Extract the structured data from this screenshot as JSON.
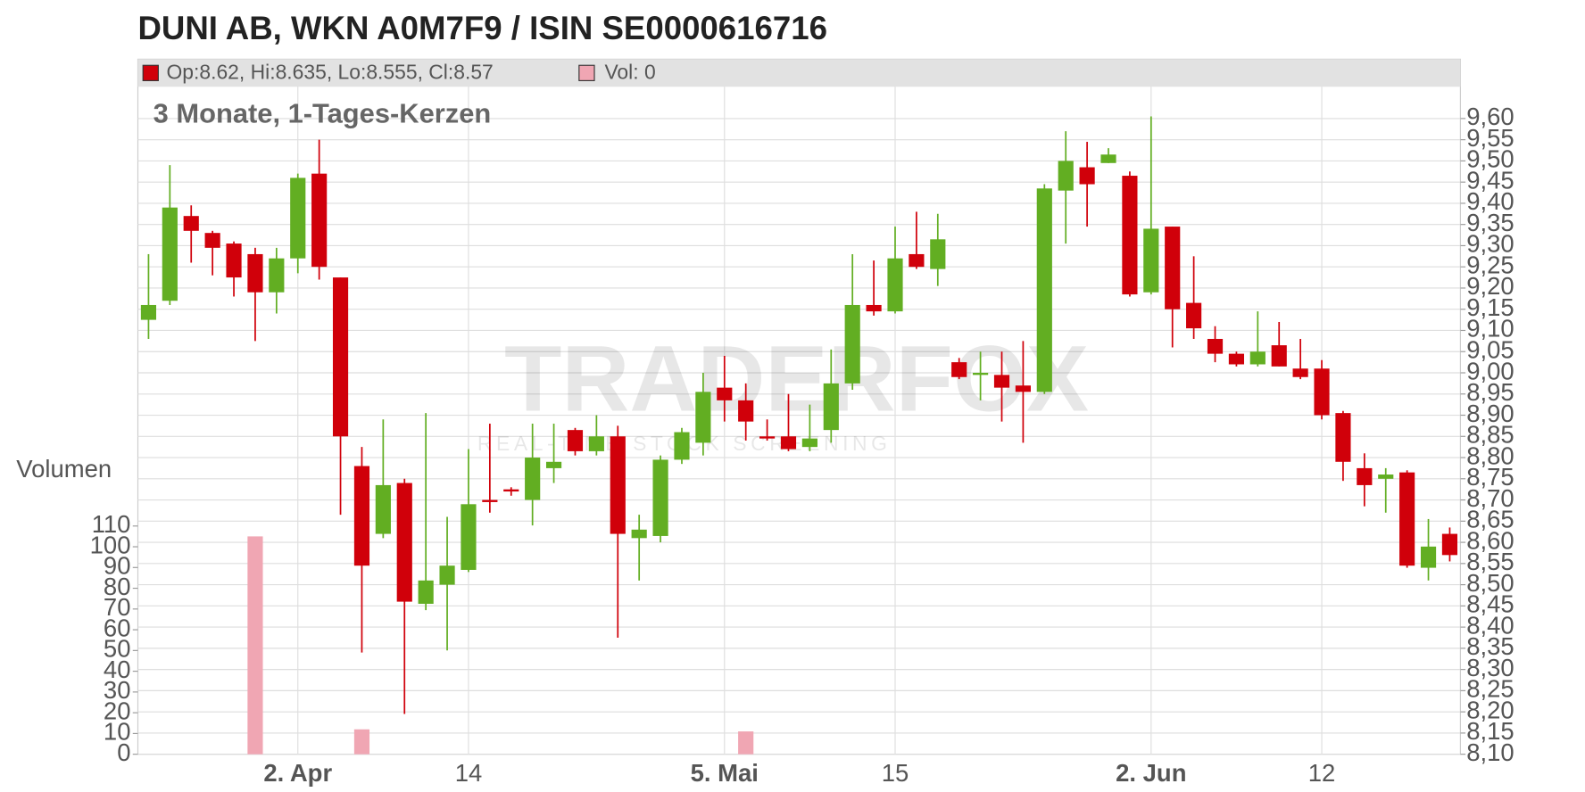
{
  "chart_data": {
    "type": "candlestick",
    "title": "DUNI AB, WKN A0M7F9 / ISIN SE0000616716",
    "subtitle": "3 Monate, 1-Tages-Kerzen",
    "legend": [
      "Op:8.62, Hi:8.635, Lo:8.555, Cl:8.57",
      "Vol: 0"
    ],
    "y2_label": "Volumen",
    "watermark": [
      "TRADERFOX",
      "REAL-TIME STOCK SCREENING"
    ],
    "up_color": "#62ae22",
    "down_color": "#d0000a",
    "volume_color": "#f0a6b3",
    "grid": true,
    "categories": [
      null,
      null,
      null,
      null,
      null,
      null,
      null,
      "2. Apr",
      null,
      null,
      null,
      null,
      null,
      null,
      null,
      "14",
      null,
      null,
      null,
      null,
      null,
      null,
      null,
      null,
      null,
      null,
      null,
      "5. Mai",
      null,
      null,
      null,
      null,
      null,
      null,
      null,
      "15",
      null,
      null,
      null,
      null,
      null,
      null,
      null,
      null,
      null,
      null,
      null,
      "2. Jun",
      null,
      null,
      null,
      null,
      null,
      null,
      null,
      "12",
      null,
      null,
      null,
      null,
      null,
      null
    ],
    "open": [
      9.125,
      9.17,
      9.37,
      9.33,
      9.305,
      9.28,
      9.19,
      9.27,
      9.47,
      9.225,
      8.78,
      8.62,
      8.74,
      8.455,
      8.5,
      8.535,
      8.7,
      8.725,
      8.7,
      8.775,
      8.865,
      8.815,
      8.85,
      8.61,
      8.615,
      8.795,
      8.835,
      8.965,
      8.935,
      8.85,
      8.85,
      8.825,
      8.865,
      8.975,
      9.16,
      9.145,
      9.28,
      9.245,
      9.025,
      8.995,
      8.995,
      8.97,
      8.955,
      9.43,
      9.485,
      9.495,
      9.465,
      9.19,
      9.345,
      9.165,
      9.08,
      9.045,
      9.02,
      9.065,
      9.01,
      9.01,
      8.905,
      8.775,
      8.75,
      8.765,
      8.54,
      8.62
    ],
    "high": [
      9.28,
      9.49,
      9.395,
      9.335,
      9.31,
      9.295,
      9.295,
      9.47,
      9.55,
      9.225,
      8.825,
      8.89,
      8.75,
      8.905,
      8.66,
      8.82,
      8.88,
      8.73,
      8.88,
      8.88,
      8.87,
      8.9,
      8.875,
      8.665,
      8.805,
      8.87,
      9.0,
      9.04,
      8.975,
      8.89,
      8.95,
      8.925,
      9.055,
      9.28,
      9.265,
      9.345,
      9.38,
      9.375,
      9.035,
      9.05,
      9.05,
      9.075,
      9.445,
      9.57,
      9.545,
      9.53,
      9.475,
      9.605,
      9.345,
      9.275,
      9.11,
      9.05,
      9.145,
      9.12,
      9.08,
      9.03,
      8.91,
      8.81,
      8.775,
      8.77,
      8.655,
      8.635
    ],
    "low": [
      9.08,
      9.16,
      9.26,
      9.23,
      9.18,
      9.075,
      9.14,
      9.235,
      9.22,
      8.665,
      8.34,
      8.61,
      8.195,
      8.44,
      8.345,
      8.53,
      8.67,
      8.71,
      8.64,
      8.74,
      8.805,
      8.805,
      8.375,
      8.51,
      8.6,
      8.785,
      8.805,
      8.885,
      8.84,
      8.84,
      8.815,
      8.815,
      8.835,
      8.96,
      9.135,
      9.14,
      9.245,
      9.205,
      8.985,
      8.935,
      8.885,
      8.835,
      8.95,
      9.305,
      9.345,
      9.495,
      9.18,
      9.185,
      9.06,
      9.08,
      9.025,
      9.015,
      9.015,
      9.015,
      8.985,
      8.89,
      8.745,
      8.685,
      8.67,
      8.54,
      8.51,
      8.555
    ],
    "close": [
      9.16,
      9.39,
      9.335,
      9.295,
      9.225,
      9.19,
      9.27,
      9.46,
      9.25,
      8.85,
      8.545,
      8.735,
      8.46,
      8.51,
      8.545,
      8.69,
      8.695,
      8.72,
      8.8,
      8.79,
      8.815,
      8.85,
      8.62,
      8.63,
      8.795,
      8.86,
      8.955,
      8.935,
      8.885,
      8.845,
      8.82,
      8.845,
      8.975,
      9.16,
      9.145,
      9.27,
      9.25,
      9.315,
      8.99,
      9.0,
      8.965,
      8.955,
      9.435,
      9.5,
      9.445,
      9.515,
      9.185,
      9.34,
      9.15,
      9.105,
      9.045,
      9.02,
      9.05,
      9.015,
      8.99,
      8.9,
      8.79,
      8.735,
      8.76,
      8.545,
      8.59,
      8.57
    ],
    "volume": [
      0,
      0,
      0,
      0,
      0,
      105,
      0,
      0,
      0,
      0,
      12,
      0,
      0,
      0,
      0,
      0,
      0,
      0,
      0,
      0,
      0,
      0,
      0,
      0,
      0,
      0,
      0,
      0,
      11,
      0,
      0,
      0,
      0,
      0,
      0,
      0,
      0,
      0,
      0,
      0,
      0,
      0,
      0,
      0,
      0,
      0,
      0,
      0,
      0,
      0,
      0,
      0,
      0,
      0,
      0,
      0,
      0,
      0,
      0,
      0,
      0,
      0
    ],
    "ylim": [
      8.1,
      9.74
    ],
    "yticks": [
      {
        "value": 8.1,
        "label": "8,10"
      },
      {
        "value": 8.15,
        "label": "8,15"
      },
      {
        "value": 8.2,
        "label": "8,20"
      },
      {
        "value": 8.25,
        "label": "8,25"
      },
      {
        "value": 8.3,
        "label": "8,30"
      },
      {
        "value": 8.35,
        "label": "8,35"
      },
      {
        "value": 8.4,
        "label": "8,40"
      },
      {
        "value": 8.45,
        "label": "8,45"
      },
      {
        "value": 8.5,
        "label": "8,50"
      },
      {
        "value": 8.55,
        "label": "8,55"
      },
      {
        "value": 8.6,
        "label": "8,60"
      },
      {
        "value": 8.65,
        "label": "8,65"
      },
      {
        "value": 8.7,
        "label": "8,70"
      },
      {
        "value": 8.75,
        "label": "8,75"
      },
      {
        "value": 8.8,
        "label": "8,80"
      },
      {
        "value": 8.85,
        "label": "8,85"
      },
      {
        "value": 8.9,
        "label": "8,90"
      },
      {
        "value": 8.95,
        "label": "8,95"
      },
      {
        "value": 9.0,
        "label": "9,00"
      },
      {
        "value": 9.05,
        "label": "9,05"
      },
      {
        "value": 9.1,
        "label": "9,10"
      },
      {
        "value": 9.15,
        "label": "9,15"
      },
      {
        "value": 9.2,
        "label": "9,20"
      },
      {
        "value": 9.25,
        "label": "9,25"
      },
      {
        "value": 9.3,
        "label": "9,30"
      },
      {
        "value": 9.35,
        "label": "9,35"
      },
      {
        "value": 9.4,
        "label": "9,40"
      },
      {
        "value": 9.45,
        "label": "9,45"
      },
      {
        "value": 9.5,
        "label": "9,50"
      },
      {
        "value": 9.55,
        "label": "9,55"
      },
      {
        "value": 9.6,
        "label": "9,60"
      }
    ],
    "y2lim": [
      0,
      335
    ],
    "y2ticks": [
      0,
      10,
      20,
      30,
      40,
      50,
      60,
      70,
      80,
      90,
      100,
      110
    ]
  }
}
